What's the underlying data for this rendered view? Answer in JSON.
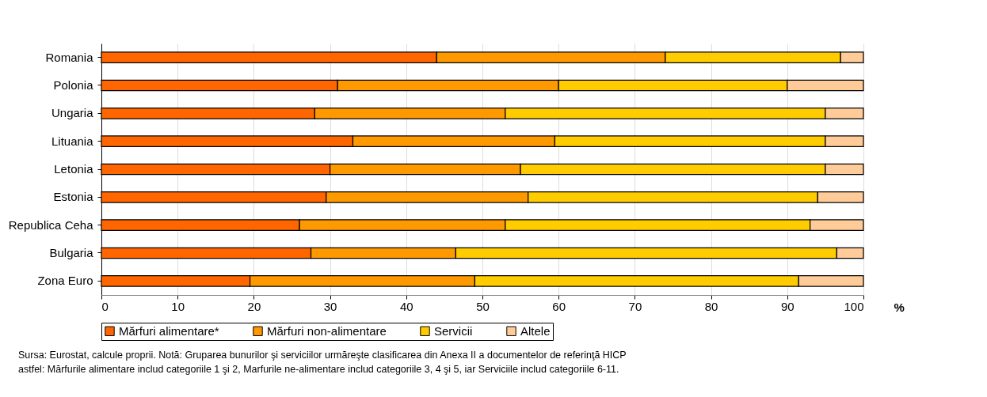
{
  "chart_data": {
    "type": "bar",
    "orientation": "horizontal",
    "stacked": true,
    "categories": [
      "Romania",
      "Polonia",
      "Ungaria",
      "Lituania",
      "Letonia",
      "Estonia",
      "Republica Ceha",
      "Bulgaria",
      "Zona Euro"
    ],
    "series": [
      {
        "name": "Mărfuri alimentare*",
        "color": "#ff6600",
        "values": [
          44,
          31,
          28,
          33,
          30,
          29.5,
          26,
          27.5,
          19.5
        ]
      },
      {
        "name": "Mărfuri non-alimentare",
        "color": "#ff9900",
        "values": [
          30,
          29,
          25,
          26.5,
          25,
          26.5,
          27,
          19,
          29.5
        ]
      },
      {
        "name": "Servicii",
        "color": "#ffcc00",
        "values": [
          23,
          30,
          42,
          35.5,
          40,
          38,
          40,
          50,
          42.5
        ]
      },
      {
        "name": "Altele",
        "color": "#ffcc99",
        "values": [
          3,
          10,
          5,
          5,
          5,
          6,
          7,
          3.5,
          8.5
        ]
      }
    ],
    "xlim": [
      0,
      100
    ],
    "xticks": [
      0,
      10,
      20,
      30,
      40,
      50,
      60,
      70,
      80,
      90,
      100
    ],
    "xlabel": "%",
    "grid": "x",
    "legend": "bottom",
    "annotations": [
      "Sursa: Eurostat, calcule proprii. Notă: Gruparea bunurilor şi serviciilor urmăreşte clasificarea din Anexa II a documentelor de referinţă HICP",
      "astfel: Mărfurile alimentare includ categoriile 1 şi 2, Marfurile ne-alimentare includ categoriile 3, 4 şi 5, iar Serviciile includ categoriile 6-11."
    ]
  }
}
